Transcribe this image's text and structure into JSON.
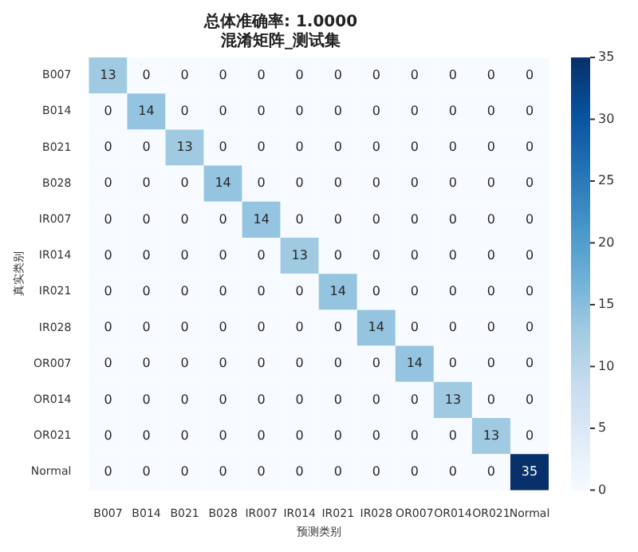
{
  "chart_data": {
    "type": "heatmap",
    "title": "总体准确率: 1.0000",
    "subtitle": "混淆矩阵_测试集",
    "xlabel": "预测类别",
    "ylabel": "真实类别",
    "categories": [
      "B007",
      "B014",
      "B021",
      "B028",
      "IR007",
      "IR014",
      "IR021",
      "IR028",
      "OR007",
      "OR014",
      "OR021",
      "Normal"
    ],
    "y_categories": [
      "B007",
      "B014",
      "B021",
      "B028",
      "IR007",
      "IR014",
      "IR021",
      "IR028",
      "OR007",
      "OR014",
      "OR021",
      "Normal"
    ],
    "cells": [
      [
        13,
        0,
        0,
        0,
        0,
        0,
        0,
        0,
        0,
        0,
        0,
        0
      ],
      [
        0,
        14,
        0,
        0,
        0,
        0,
        0,
        0,
        0,
        0,
        0,
        0
      ],
      [
        0,
        0,
        13,
        0,
        0,
        0,
        0,
        0,
        0,
        0,
        0,
        0
      ],
      [
        0,
        0,
        0,
        14,
        0,
        0,
        0,
        0,
        0,
        0,
        0,
        0
      ],
      [
        0,
        0,
        0,
        0,
        14,
        0,
        0,
        0,
        0,
        0,
        0,
        0
      ],
      [
        0,
        0,
        0,
        0,
        0,
        13,
        0,
        0,
        0,
        0,
        0,
        0
      ],
      [
        0,
        0,
        0,
        0,
        0,
        0,
        14,
        0,
        0,
        0,
        0,
        0
      ],
      [
        0,
        0,
        0,
        0,
        0,
        0,
        0,
        14,
        0,
        0,
        0,
        0
      ],
      [
        0,
        0,
        0,
        0,
        0,
        0,
        0,
        0,
        14,
        0,
        0,
        0
      ],
      [
        0,
        0,
        0,
        0,
        0,
        0,
        0,
        0,
        0,
        13,
        0,
        0
      ],
      [
        0,
        0,
        0,
        0,
        0,
        0,
        0,
        0,
        0,
        0,
        13,
        0
      ],
      [
        0,
        0,
        0,
        0,
        0,
        0,
        0,
        0,
        0,
        0,
        0,
        35
      ]
    ],
    "clim": [
      0,
      35
    ],
    "cticks": [
      0,
      5,
      10,
      15,
      20,
      25,
      30,
      35
    ],
    "data_labels": true
  }
}
